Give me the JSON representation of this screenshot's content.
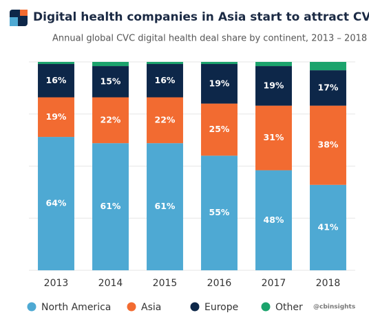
{
  "chart_data": {
    "type": "stacked-bar",
    "title": "Digital health companies in Asia start to attract CVCs",
    "subtitle": "Annual global CVC digital health deal share by continent, 2013 – 2018",
    "source": "@cbinsights",
    "categories": [
      "2013",
      "2014",
      "2015",
      "2016",
      "2017",
      "2018"
    ],
    "series": [
      {
        "name": "North America",
        "color": "#4ea9d3",
        "values": [
          64,
          61,
          61,
          55,
          48,
          41
        ],
        "value_labels": [
          "64%",
          "61%",
          "61%",
          "55%",
          "48%",
          "41%"
        ]
      },
      {
        "name": "Asia",
        "color": "#f26b31",
        "values": [
          19,
          22,
          22,
          25,
          31,
          38
        ],
        "value_labels": [
          "19%",
          "22%",
          "22%",
          "25%",
          "31%",
          "38%"
        ]
      },
      {
        "name": "Europe",
        "color": "#0d2749",
        "values": [
          16,
          15,
          16,
          19,
          19,
          17
        ],
        "value_labels": [
          "16%",
          "15%",
          "16%",
          "19%",
          "19%",
          "17%"
        ]
      },
      {
        "name": "Other",
        "color": "#1ba36c",
        "values": [
          1,
          2,
          1,
          1,
          2,
          4
        ]
      }
    ],
    "ylim": [
      0,
      100
    ],
    "yticks": [
      0,
      25,
      50,
      75,
      100
    ],
    "grid": true
  }
}
